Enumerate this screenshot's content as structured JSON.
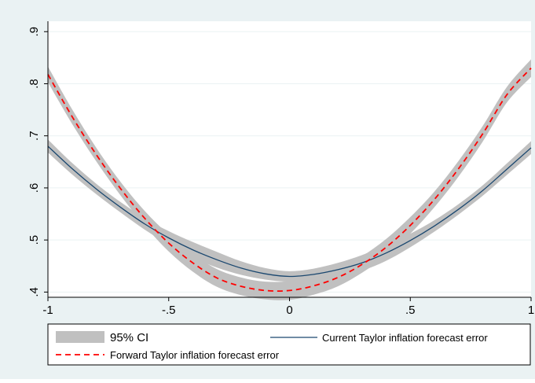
{
  "chart_data": {
    "type": "line",
    "title": "",
    "xlabel": "",
    "ylabel": "",
    "xlim": [
      -1,
      1
    ],
    "ylim": [
      0.39,
      0.92
    ],
    "x_ticks": [
      {
        "value": -1,
        "label": "-1"
      },
      {
        "value": -0.5,
        "label": "-.5"
      },
      {
        "value": 0,
        "label": "0"
      },
      {
        "value": 0.5,
        "label": ".5"
      },
      {
        "value": 1,
        "label": "1"
      }
    ],
    "y_ticks": [
      {
        "value": 0.4,
        "label": ".4"
      },
      {
        "value": 0.5,
        "label": ".5"
      },
      {
        "value": 0.6,
        "label": ".6"
      },
      {
        "value": 0.7,
        "label": ".7"
      },
      {
        "value": 0.8,
        "label": ".8"
      },
      {
        "value": 0.9,
        "label": ".9"
      }
    ],
    "grid": true,
    "x": [
      -1,
      -0.9,
      -0.8,
      -0.7,
      -0.6,
      -0.5,
      -0.4,
      -0.3,
      -0.2,
      -0.1,
      0,
      0.1,
      0.2,
      0.3,
      0.4,
      0.5,
      0.6,
      0.7,
      0.8,
      0.9,
      1
    ],
    "series": [
      {
        "name": "Current Taylor inflation forecast error",
        "style": "solid",
        "color": "#1a476f",
        "values": [
          0.68,
          0.637,
          0.598,
          0.563,
          0.531,
          0.504,
          0.481,
          0.462,
          0.446,
          0.435,
          0.43,
          0.434,
          0.443,
          0.456,
          0.475,
          0.499,
          0.527,
          0.559,
          0.595,
          0.636,
          0.677
        ],
        "ci_lower": [
          0.668,
          0.626,
          0.588,
          0.553,
          0.52,
          0.491,
          0.466,
          0.447,
          0.433,
          0.424,
          0.42,
          0.423,
          0.43,
          0.441,
          0.46,
          0.486,
          0.516,
          0.549,
          0.585,
          0.625,
          0.665
        ],
        "ci_upper": [
          0.693,
          0.648,
          0.608,
          0.573,
          0.542,
          0.517,
          0.496,
          0.477,
          0.459,
          0.446,
          0.44,
          0.445,
          0.456,
          0.471,
          0.49,
          0.512,
          0.538,
          0.569,
          0.605,
          0.647,
          0.69
        ]
      },
      {
        "name": "Forward Taylor inflation forecast error",
        "style": "dashed",
        "color": "#ff0000",
        "values": [
          0.818,
          0.737,
          0.664,
          0.599,
          0.542,
          0.494,
          0.456,
          0.427,
          0.411,
          0.403,
          0.403,
          0.412,
          0.428,
          0.453,
          0.486,
          0.528,
          0.578,
          0.637,
          0.704,
          0.779,
          0.83
        ],
        "ci_lower": [
          0.803,
          0.723,
          0.651,
          0.586,
          0.528,
          0.478,
          0.439,
          0.41,
          0.394,
          0.386,
          0.385,
          0.395,
          0.411,
          0.437,
          0.47,
          0.512,
          0.563,
          0.622,
          0.689,
          0.764,
          0.813
        ],
        "ci_upper": [
          0.833,
          0.751,
          0.677,
          0.612,
          0.556,
          0.51,
          0.473,
          0.444,
          0.428,
          0.42,
          0.421,
          0.429,
          0.445,
          0.469,
          0.502,
          0.544,
          0.593,
          0.652,
          0.719,
          0.794,
          0.847
        ]
      }
    ],
    "ci_label": "95% CI",
    "ci_color": "#c0c0c0",
    "legend_position": "bottom",
    "background_color": "#eaf2f3",
    "plot_background": "#ffffff",
    "grid_color": "#eaf2f3"
  }
}
